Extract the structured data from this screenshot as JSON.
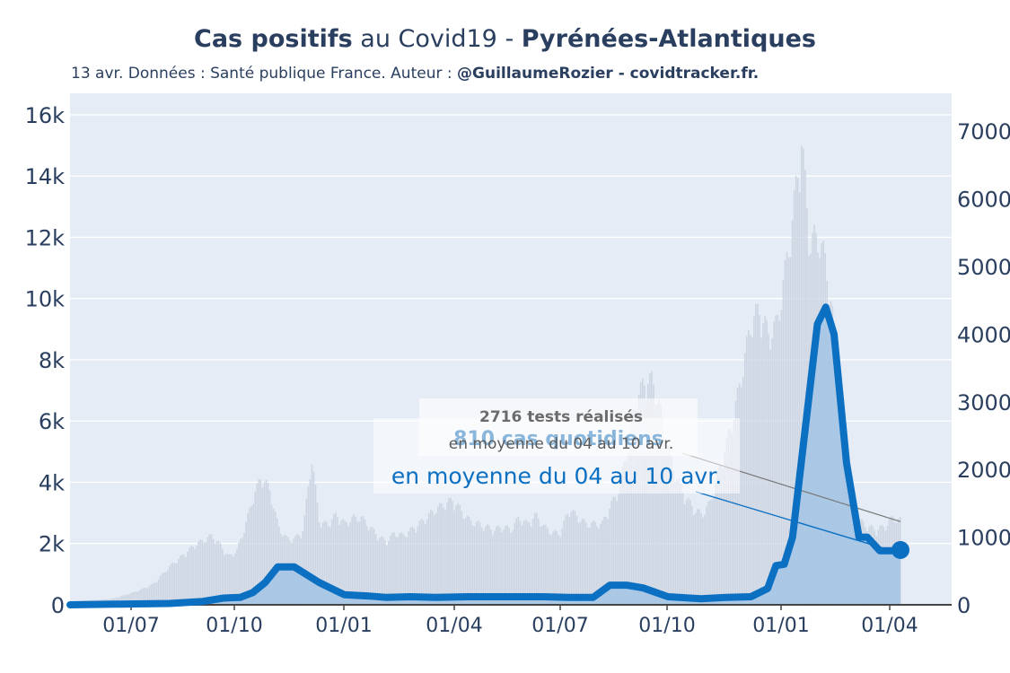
{
  "title": {
    "bold_part": "Cas positifs",
    "middle_part": " au Covid19 - ",
    "region": "Pyrénées-Atlantiques"
  },
  "subtitle": {
    "prefix": "13 avr. Données : Santé publique France. Auteur : ",
    "author": "@GuillaumeRozier - covidtracker.fr."
  },
  "annotations": {
    "tests": {
      "line1": "2716 tests réalisés",
      "line2": "en moyenne du 04 au 10 avr."
    },
    "cases": {
      "line1": "810 cas quotidiens",
      "line2": "en moyenne du 04 au 10 avr."
    }
  },
  "colors": {
    "cases_line": "#0b6fc2",
    "cases_fill": "#9cc2e4",
    "tests_bars": "#cdd5e2",
    "plot_bg": "#e5ecf6",
    "tests_label": "#6b6b6b",
    "cases_label_light": "#8ab6dc"
  },
  "chart_data": {
    "type": "line",
    "x_ticks": [
      "01/07",
      "01/10",
      "01/01",
      "01/04",
      "01/07",
      "01/10",
      "01/01",
      "01/04"
    ],
    "y_left_ticks": [
      "0",
      "2k",
      "4k",
      "6k",
      "8k",
      "10k",
      "12k",
      "14k",
      "16k"
    ],
    "y_right_ticks": [
      "0",
      "1000",
      "2000",
      "3000",
      "4000",
      "5000",
      "6000",
      "7000"
    ],
    "y_left_range": [
      0,
      16700
    ],
    "y_right_range": [
      0,
      7560
    ],
    "x_range": [
      0,
      1040
    ],
    "grid": true,
    "series": [
      {
        "axis": "left",
        "style": "bars",
        "x": [
          0,
          50,
          80,
          100,
          120,
          150,
          170,
          180,
          190,
          200,
          210,
          220,
          230,
          240,
          250,
          260,
          270,
          280,
          290,
          300,
          310,
          320,
          330,
          340,
          350,
          360,
          370,
          380,
          390,
          400,
          420,
          440,
          460,
          480,
          500,
          510,
          520,
          530,
          540,
          550,
          560,
          570,
          580,
          590,
          600,
          620,
          640,
          650,
          660,
          670,
          680,
          690,
          700,
          710,
          720,
          730,
          740,
          750,
          760,
          770,
          780,
          790,
          800,
          810,
          820,
          830,
          840,
          850,
          860,
          870,
          880,
          890,
          900,
          910,
          920,
          930,
          940,
          950,
          960,
          970,
          980,
          990,
          1000
        ],
        "values": [
          100,
          200,
          450,
          700,
          1300,
          2000,
          2300,
          2000,
          1600,
          1800,
          2600,
          3600,
          4300,
          3800,
          2600,
          2200,
          2200,
          2500,
          4900,
          2700,
          2700,
          3000,
          2700,
          2900,
          2900,
          2600,
          2300,
          2100,
          2400,
          2300,
          2700,
          3200,
          3500,
          2800,
          2600,
          2500,
          2600,
          2500,
          2900,
          2700,
          3000,
          2600,
          2400,
          2400,
          3200,
          2700,
          2700,
          3300,
          3800,
          5200,
          6700,
          7400,
          7500,
          6500,
          5200,
          4200,
          3600,
          3200,
          3000,
          3400,
          4400,
          5400,
          6500,
          8000,
          9500,
          9800,
          9000,
          9300,
          11000,
          13000,
          15500,
          12000,
          12300,
          11300,
          9000,
          5600,
          3500,
          2800,
          2600,
          2500,
          2600,
          2900,
          2800
        ]
      },
      {
        "axis": "right",
        "style": "line",
        "x": [
          0,
          60,
          120,
          160,
          185,
          205,
          220,
          235,
          250,
          270,
          300,
          330,
          360,
          380,
          410,
          440,
          480,
          510,
          540,
          570,
          600,
          630,
          650,
          670,
          690,
          720,
          760,
          790,
          820,
          840,
          850,
          860,
          870,
          890,
          900,
          910,
          920,
          935,
          950,
          960,
          975,
          990,
          1000
        ],
        "values": [
          0,
          10,
          20,
          50,
          100,
          110,
          180,
          330,
          560,
          560,
          330,
          150,
          130,
          110,
          120,
          110,
          120,
          120,
          120,
          120,
          110,
          110,
          290,
          290,
          250,
          120,
          90,
          110,
          120,
          240,
          580,
          600,
          1000,
          3100,
          4150,
          4400,
          4000,
          2100,
          1000,
          1000,
          800,
          800,
          810
        ]
      }
    ]
  }
}
